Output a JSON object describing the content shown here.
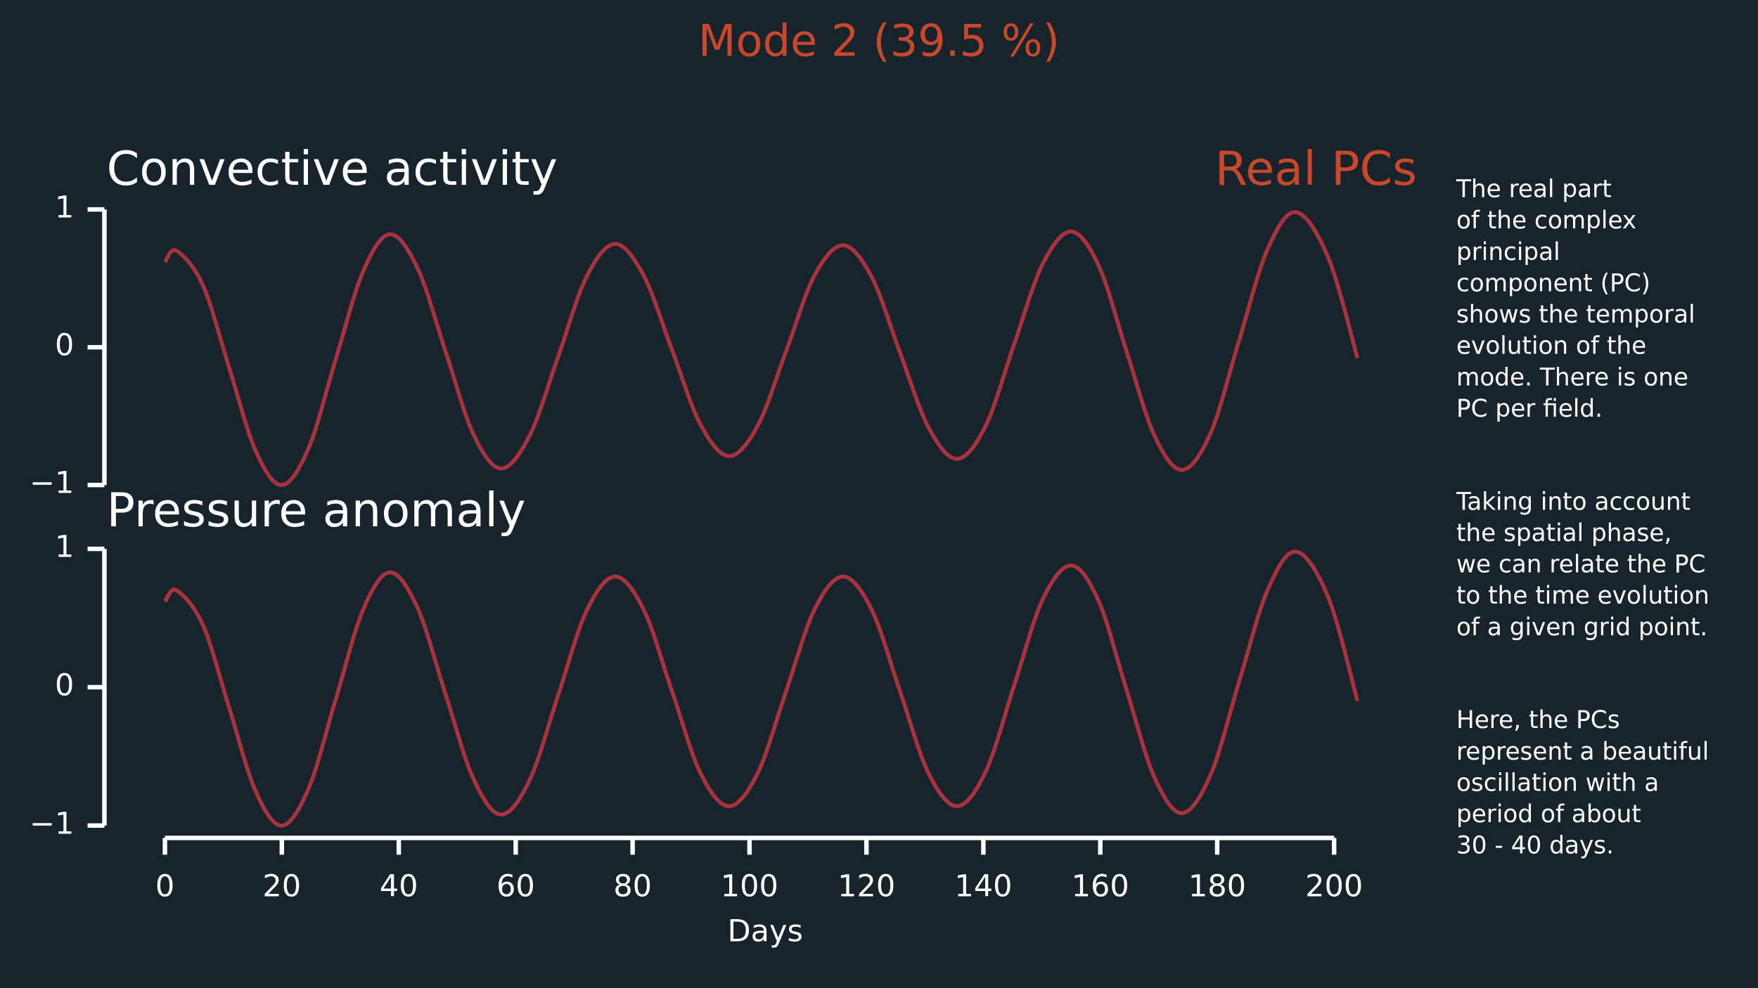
{
  "title": "Mode 2 (39.5 %)",
  "annotation": "Real PCs",
  "title_color": "#c9482c",
  "notes": [
    [
      "The real part",
      "of the complex",
      "principal",
      "component (PC)",
      "shows the temporal",
      "evolution of the",
      "mode. There is one",
      "PC per field."
    ],
    [
      "Taking into account",
      "the spatial phase,",
      "we can relate the PC",
      "to the time evolution",
      "of a given grid point."
    ],
    [
      "Here, the PCs",
      "represent a beautiful",
      "oscillation with a",
      "period of about",
      "30 - 40 days."
    ]
  ],
  "chart_data": [
    {
      "type": "line",
      "title": "Convective activity",
      "color": "#a8333f",
      "x": [
        0,
        2,
        6.5,
        11,
        15.5,
        20,
        24.6,
        29.2,
        33.9,
        38.5,
        43.25,
        48,
        52.75,
        57.5,
        62.4,
        67.25,
        72.1,
        77,
        81.9,
        86.75,
        91.6,
        96.5,
        101.4,
        106.25,
        111.1,
        116,
        120.9,
        125.75,
        130.6,
        135.5,
        140.4,
        145.25,
        150.1,
        155,
        159.75,
        164.5,
        169.25,
        174,
        178.9,
        183.75,
        188.6,
        193.5,
        199,
        204
      ],
      "values": [
        0.62,
        0.7,
        0.45,
        -0.15,
        -0.75,
        -1.0,
        -0.73,
        -0.09,
        0.55,
        0.82,
        0.57,
        -0.03,
        -0.63,
        -0.88,
        -0.64,
        -0.07,
        0.51,
        0.75,
        0.52,
        -0.02,
        -0.56,
        -0.79,
        -0.57,
        -0.03,
        0.52,
        0.74,
        0.51,
        -0.04,
        -0.58,
        -0.81,
        -0.57,
        0.02,
        0.6,
        0.84,
        0.59,
        -0.03,
        -0.64,
        -0.89,
        -0.62,
        0.05,
        0.71,
        0.98,
        0.65,
        -0.08
      ],
      "xlim": [
        0,
        200
      ],
      "ylim": [
        -1,
        1
      ],
      "yticks": [
        {
          "value": -1,
          "label": "−1"
        },
        0,
        1
      ]
    },
    {
      "type": "line",
      "title": "Pressure anomaly",
      "color": "#a8333f",
      "xlabel": "Days",
      "x": [
        0,
        2,
        6.5,
        11,
        15.5,
        20,
        24.6,
        29.2,
        33.9,
        38.5,
        43.25,
        48,
        52.75,
        57.5,
        62.4,
        67.25,
        72.1,
        77,
        81.9,
        86.75,
        91.6,
        96.5,
        101.4,
        106.25,
        111.1,
        116,
        120.9,
        125.75,
        130.6,
        135.5,
        140.4,
        145.25,
        150.1,
        155,
        159.75,
        164.5,
        169.25,
        174,
        178.9,
        183.75,
        188.6,
        193.5,
        199,
        204
      ],
      "values": [
        0.62,
        0.7,
        0.45,
        -0.15,
        -0.75,
        -1.0,
        -0.73,
        -0.09,
        0.56,
        0.83,
        0.57,
        -0.05,
        -0.66,
        -0.92,
        -0.67,
        -0.06,
        0.55,
        0.8,
        0.56,
        -0.03,
        -0.62,
        -0.86,
        -0.62,
        -0.03,
        0.56,
        0.8,
        0.56,
        -0.03,
        -0.62,
        -0.86,
        -0.61,
        0.01,
        0.63,
        0.88,
        0.62,
        -0.02,
        -0.65,
        -0.91,
        -0.63,
        0.04,
        0.7,
        0.98,
        0.65,
        -0.1
      ],
      "xlim": [
        0,
        200
      ],
      "ylim": [
        -1,
        1
      ],
      "yticks": [
        {
          "value": -1,
          "label": "−1"
        },
        0,
        1
      ],
      "xticks": [
        0,
        20,
        40,
        60,
        80,
        100,
        120,
        140,
        160,
        180,
        200
      ]
    }
  ]
}
